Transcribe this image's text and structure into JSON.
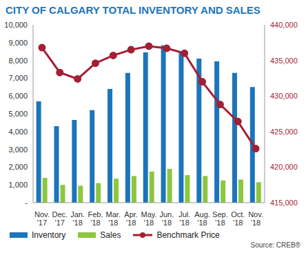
{
  "chart_data": {
    "type": "bar",
    "title": "CITY OF CALGARY TOTAL INVENTORY AND SALES",
    "source": "Source: CREB®",
    "categories": [
      "Nov. '17",
      "Dec. '17",
      "Jan. '18",
      "Feb. '18",
      "Mar. '18",
      "Apr. '18",
      "May. '18",
      "Jun. '18",
      "Jul. '18",
      "Aug. '18",
      "Sep. '18",
      "Oct. '18",
      "Nov. '18"
    ],
    "series": [
      {
        "name": "Inventory",
        "type": "bar",
        "color": "#1b75bb",
        "values": [
          5700,
          4300,
          4650,
          5200,
          6400,
          7300,
          8450,
          8850,
          8450,
          8100,
          7950,
          7300,
          6500
        ]
      },
      {
        "name": "Sales",
        "type": "bar",
        "color": "#8dc63f",
        "values": [
          1400,
          1000,
          950,
          1100,
          1350,
          1500,
          1750,
          1900,
          1550,
          1500,
          1250,
          1300,
          1150
        ]
      },
      {
        "name": "Benchmark Price",
        "type": "line",
        "axis": "y2",
        "marker": "circle",
        "color": "#a31f34",
        "values": [
          436800,
          433300,
          432400,
          434600,
          435700,
          436500,
          437000,
          436700,
          436000,
          432000,
          428800,
          426400,
          422600
        ]
      }
    ],
    "ylim": [
      0,
      10000
    ],
    "yticks": [
      {
        "value": 0,
        "label": "-"
      },
      {
        "value": 1000,
        "label": "1,000"
      },
      {
        "value": 2000,
        "label": "2,000"
      },
      {
        "value": 3000,
        "label": "3,000"
      },
      {
        "value": 4000,
        "label": "4,000"
      },
      {
        "value": 5000,
        "label": "5,000"
      },
      {
        "value": 6000,
        "label": "6,000"
      },
      {
        "value": 7000,
        "label": "7,000"
      },
      {
        "value": 8000,
        "label": "8,000"
      },
      {
        "value": 9000,
        "label": "9,000"
      },
      {
        "value": 10000,
        "label": "10,000"
      }
    ],
    "y2lim": [
      415000,
      440000
    ],
    "y2ticks": [
      {
        "value": 415000,
        "label": "415,000"
      },
      {
        "value": 420000,
        "label": "420,000"
      },
      {
        "value": 425000,
        "label": "425,000"
      },
      {
        "value": 430000,
        "label": "430,000"
      },
      {
        "value": 435000,
        "label": "435,000"
      },
      {
        "value": 440000,
        "label": "440,000"
      }
    ],
    "grid": false,
    "legend": "bottom"
  }
}
